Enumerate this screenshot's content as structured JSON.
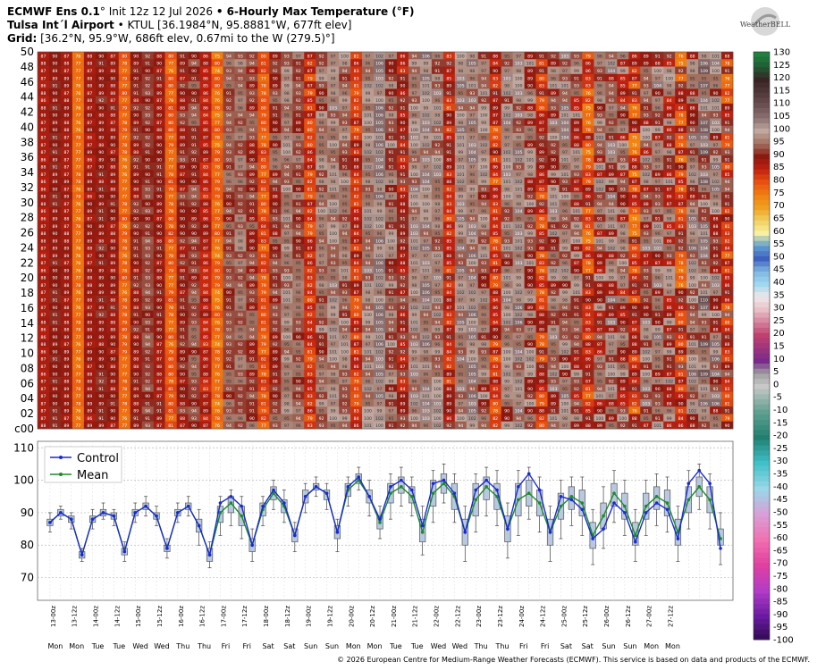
{
  "header": {
    "line1_bold": "ECMWF Ens 0.1",
    "line1_rest": "° Init 12z 12 Jul 2026 ",
    "line1_title": "• 6-Hourly Max Temperature (°F)",
    "line2_bold": "Tulsa Int´l Airport",
    "line2_rest": " • KTUL [36.1984°N, 95.8881°W, 677ft elev]",
    "line3_bold": "Grid:",
    "line3_rest": " [36.2°N, 95.9°W, 686ft elev, 0.67mi to the W (279.5)°]"
  },
  "logo_text": "WeatherBELL",
  "footer": "© 2026 European Centre for Medium-Range Weather Forecasts (ECMWF). This service is based on data and products of the ECMWF.",
  "chart_data": [
    {
      "type": "heatmap",
      "title": "6-Hourly Max Temperature (°F)",
      "member_labels": [
        "50",
        "48",
        "46",
        "44",
        "42",
        "40",
        "38",
        "36",
        "34",
        "32",
        "30",
        "28",
        "26",
        "24",
        "22",
        "20",
        "18",
        "16",
        "14",
        "12",
        "10",
        "08",
        "06",
        "04",
        "02",
        "c00"
      ],
      "members": 51,
      "columns": 60,
      "representative_member_values": [
        87,
        90,
        88,
        77,
        88,
        90,
        89,
        78,
        90,
        92,
        89,
        79,
        90,
        92,
        86,
        77,
        93,
        95,
        92,
        80,
        92,
        97,
        93,
        83,
        95,
        98,
        96,
        84,
        98,
        101,
        95,
        88,
        98,
        100,
        97,
        86,
        99,
        100,
        96,
        84,
        97,
        99,
        95,
        85,
        96,
        97,
        93,
        83,
        94,
        96,
        92,
        83,
        95,
        96,
        93,
        84,
        97,
        100,
        97,
        85
      ],
      "colorscale_ticks": [
        130,
        125,
        120,
        115,
        110,
        105,
        100,
        95,
        90,
        85,
        80,
        75,
        70,
        65,
        60,
        55,
        50,
        45,
        40,
        35,
        30,
        25,
        20,
        15,
        10,
        5,
        0,
        -5,
        -10,
        -15,
        -20,
        -25,
        -30,
        -35,
        -40,
        -45,
        -50,
        -55,
        -60,
        -65,
        -70,
        -75,
        -80,
        -85,
        -90,
        -95,
        -100
      ]
    },
    {
      "type": "box",
      "ylim": [
        63,
        112
      ],
      "yticks": [
        70,
        80,
        90,
        100,
        110
      ],
      "legend": [
        "Control",
        "Mean"
      ],
      "legend_position": "top-left",
      "grid": true,
      "x_labels": [
        "13-00z",
        "13-12z",
        "14-00z",
        "14-12z",
        "15-00z",
        "15-12z",
        "16-00z",
        "16-12z",
        "17-00z",
        "17-12z",
        "18-00z",
        "18-12z",
        "19-00z",
        "19-12z",
        "20-00z",
        "20-12z",
        "21-00z",
        "21-12z",
        "22-00z",
        "22-12z",
        "23-00z",
        "23-12z",
        "24-00z",
        "24-12z",
        "25-00z",
        "25-12z",
        "26-00z",
        "26-12z",
        "27-00z",
        "27-12z"
      ],
      "day_labels": [
        "Mon",
        "Mon",
        "Tue",
        "Tue",
        "Wed",
        "Wed",
        "Thu",
        "Thu",
        "Fri",
        "Fri",
        "Sat",
        "Sat",
        "Sun",
        "Sun",
        "Mon",
        "Mon",
        "Tue",
        "Tue",
        "Wed",
        "Wed",
        "Thu",
        "Thu",
        "Fri",
        "Fri",
        "Sat",
        "Sat",
        "Sun",
        "Sun",
        "Mon",
        "Mon"
      ],
      "control": [
        87,
        90,
        88,
        77,
        88,
        90,
        89,
        78,
        90,
        92,
        89,
        79,
        90,
        92,
        86,
        77,
        93,
        95,
        92,
        80,
        92,
        97,
        93,
        83,
        95,
        98,
        96,
        84,
        98,
        101,
        95,
        88,
        98,
        100,
        97,
        86,
        99,
        100,
        96,
        84,
        97,
        100,
        97,
        85,
        98,
        102,
        97,
        84,
        95,
        94,
        91,
        82,
        85,
        93,
        90,
        81,
        90,
        93,
        91,
        82,
        99,
        103,
        99,
        79
      ],
      "mean": [
        87,
        90,
        88,
        77,
        88,
        90,
        89,
        78,
        90,
        92,
        89,
        79,
        90,
        92,
        86,
        77,
        90,
        93,
        89,
        80,
        91,
        96,
        92,
        83,
        95,
        98,
        96,
        84,
        97,
        100,
        95,
        87,
        96,
        98,
        95,
        84,
        96,
        99,
        95,
        84,
        94,
        98,
        95,
        85,
        94,
        96,
        93,
        84,
        92,
        95,
        93,
        83,
        89,
        96,
        92,
        83,
        92,
        95,
        93,
        84,
        94,
        98,
        94,
        82
      ],
      "q1": [
        86,
        89,
        87,
        76,
        87,
        89,
        88,
        77,
        89,
        91,
        88,
        78,
        89,
        91,
        84,
        75,
        87,
        90,
        86,
        78,
        89,
        94,
        90,
        81,
        93,
        97,
        94,
        82,
        95,
        99,
        93,
        85,
        93,
        96,
        93,
        81,
        92,
        96,
        91,
        80,
        89,
        94,
        91,
        81,
        89,
        92,
        89,
        80,
        88,
        91,
        89,
        79,
        85,
        92,
        88,
        80,
        88,
        91,
        89,
        80,
        90,
        95,
        90,
        80
      ],
      "q3": [
        88,
        91,
        89,
        78,
        89,
        91,
        90,
        79,
        91,
        93,
        90,
        80,
        91,
        93,
        88,
        79,
        92,
        95,
        92,
        82,
        93,
        98,
        94,
        85,
        97,
        99,
        97,
        86,
        99,
        102,
        97,
        89,
        99,
        101,
        98,
        88,
        100,
        102,
        99,
        88,
        99,
        101,
        99,
        89,
        99,
        100,
        97,
        88,
        96,
        98,
        97,
        87,
        93,
        99,
        96,
        87,
        96,
        98,
        97,
        88,
        98,
        101,
        98,
        85
      ],
      "lo": [
        84,
        88,
        85,
        75,
        85,
        88,
        86,
        75,
        87,
        89,
        86,
        76,
        87,
        89,
        80,
        73,
        83,
        86,
        82,
        75,
        86,
        91,
        87,
        78,
        90,
        95,
        91,
        78,
        92,
        97,
        89,
        82,
        88,
        92,
        89,
        77,
        87,
        93,
        87,
        75,
        84,
        89,
        86,
        76,
        83,
        88,
        84,
        75,
        82,
        86,
        83,
        74,
        79,
        87,
        83,
        75,
        83,
        86,
        84,
        75,
        85,
        91,
        85,
        74
      ],
      "hi": [
        90,
        92,
        90,
        79,
        91,
        93,
        91,
        81,
        93,
        95,
        92,
        82,
        93,
        95,
        91,
        81,
        95,
        97,
        95,
        85,
        95,
        100,
        97,
        87,
        99,
        101,
        99,
        88,
        101,
        104,
        100,
        92,
        102,
        104,
        101,
        92,
        103,
        105,
        102,
        92,
        102,
        104,
        103,
        93,
        103,
        104,
        101,
        92,
        100,
        101,
        101,
        91,
        98,
        103,
        100,
        91,
        100,
        102,
        101,
        92,
        103,
        105,
        102,
        90
      ]
    }
  ]
}
